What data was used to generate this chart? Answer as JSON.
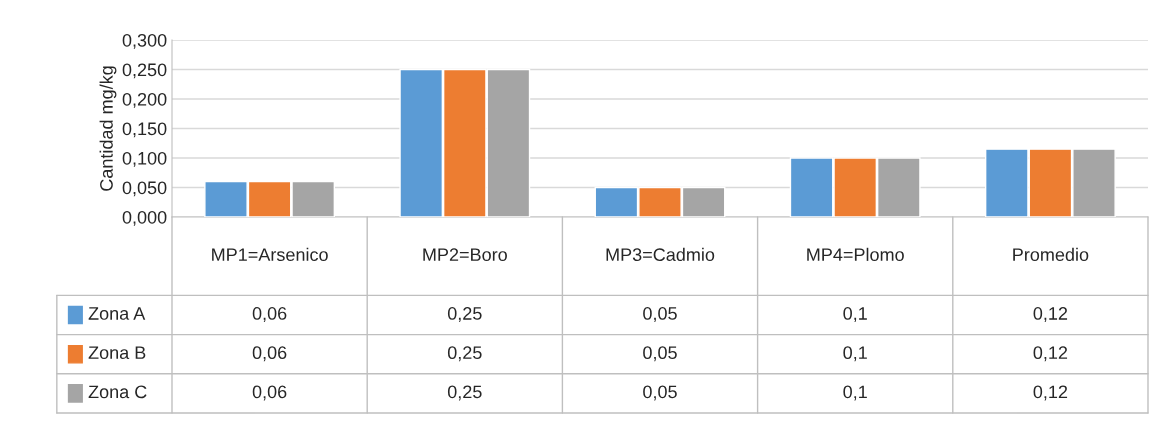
{
  "chart_data": {
    "type": "bar",
    "ylabel": "Cantidad mg/kg",
    "categories": [
      "MP1=Arsenico",
      "MP2=Boro",
      "MP3=Cadmio",
      "MP4=Plomo",
      "Promedio"
    ],
    "series": [
      {
        "name": "Zona A",
        "color": "#5b9bd5",
        "values": [
          0.06,
          0.25,
          0.05,
          0.1,
          0.115
        ],
        "value_labels": [
          "0,06",
          "0,25",
          "0,05",
          "0,1",
          "0,12"
        ]
      },
      {
        "name": "Zona B",
        "color": "#ed7d31",
        "values": [
          0.06,
          0.25,
          0.05,
          0.1,
          0.115
        ],
        "value_labels": [
          "0,06",
          "0,25",
          "0,05",
          "0,1",
          "0,12"
        ]
      },
      {
        "name": "Zona C",
        "color": "#a5a5a5",
        "values": [
          0.06,
          0.25,
          0.05,
          0.1,
          0.115
        ],
        "value_labels": [
          "0,06",
          "0,25",
          "0,05",
          "0,1",
          "0,12"
        ]
      }
    ],
    "ylim": [
      0,
      0.3
    ],
    "yticks": [
      {
        "value": 0,
        "label": "0,000"
      },
      {
        "value": 0.05,
        "label": "0,050"
      },
      {
        "value": 0.1,
        "label": "0,100"
      },
      {
        "value": 0.15,
        "label": "0,150"
      },
      {
        "value": 0.2,
        "label": "0,200"
      },
      {
        "value": 0.25,
        "label": "0,250"
      },
      {
        "value": 0.3,
        "label": "0,300"
      }
    ],
    "grid": "y",
    "legend": "left"
  }
}
